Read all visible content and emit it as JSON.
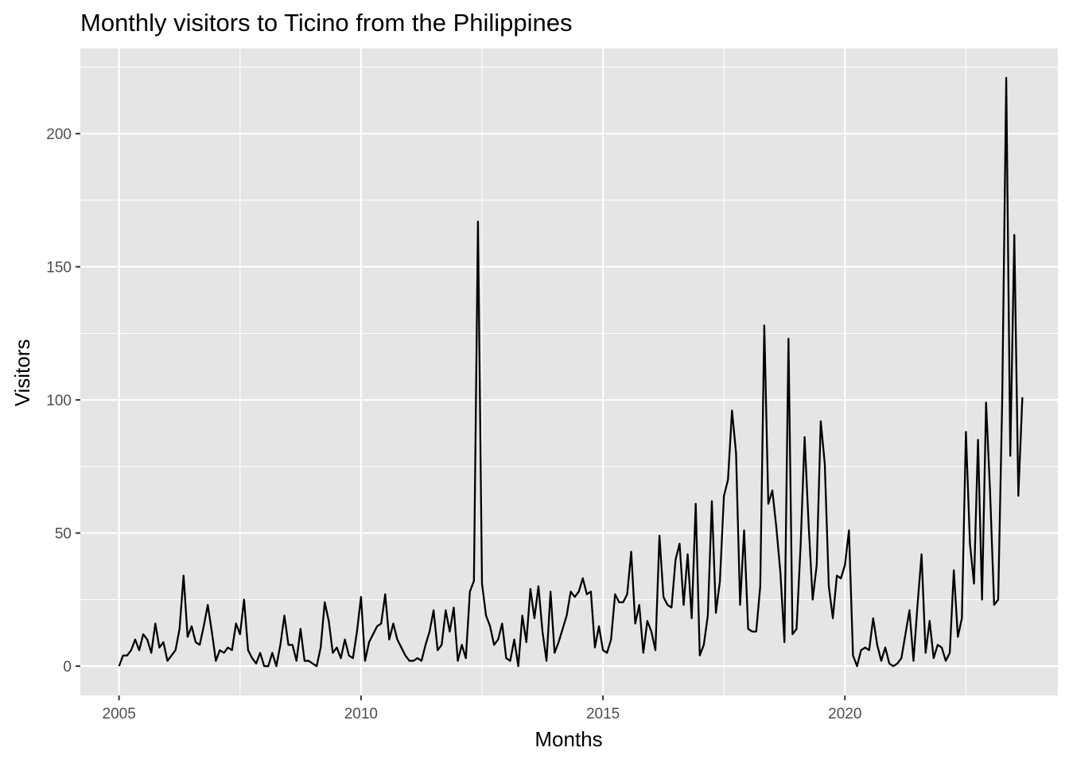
{
  "chart_data": {
    "type": "line",
    "title": "Monthly visitors to Ticino from the Philippines",
    "xlabel": "Months",
    "ylabel": "Visitors",
    "xlim": [
      2004.2,
      2024.4
    ],
    "ylim": [
      -11,
      232
    ],
    "x_ticks": [
      2005,
      2010,
      2015,
      2020
    ],
    "x_tick_labels": [
      "2005",
      "2010",
      "2015",
      "2020"
    ],
    "y_ticks": [
      0,
      50,
      100,
      150,
      200
    ],
    "y_tick_labels": [
      "0",
      "50",
      "100",
      "150",
      "200"
    ],
    "grid": true,
    "legend": "none",
    "colors": {
      "panel": "#e5e5e5",
      "grid": "#ffffff",
      "line": "#000000",
      "tick": "#333333"
    },
    "series": [
      {
        "start_year": 2005,
        "start_month": 1,
        "frequency": "monthly",
        "values": [
          0,
          4,
          4,
          6,
          10,
          6,
          12,
          10,
          5,
          16,
          7,
          9,
          2,
          4,
          6,
          14,
          34,
          11,
          15,
          9,
          8,
          15,
          23,
          13,
          2,
          6,
          5,
          7,
          6,
          16,
          12,
          25,
          6,
          3,
          1,
          5,
          0,
          0,
          5,
          0,
          8,
          19,
          8,
          8,
          2,
          14,
          2,
          2,
          1,
          0,
          7,
          24,
          17,
          5,
          7,
          3,
          10,
          4,
          3,
          13,
          26,
          2,
          9,
          12,
          15,
          16,
          27,
          10,
          16,
          10,
          7,
          4,
          2,
          2,
          3,
          2,
          8,
          13,
          21,
          6,
          8,
          21,
          13,
          22,
          2,
          8,
          3,
          28,
          32,
          167,
          31,
          19,
          15,
          8,
          10,
          16,
          3,
          2,
          10,
          0,
          19,
          9,
          29,
          18,
          30,
          13,
          2,
          28,
          5,
          9,
          14,
          19,
          28,
          26,
          28,
          33,
          27,
          28,
          7,
          15,
          6,
          5,
          10,
          27,
          24,
          24,
          27,
          43,
          16,
          23,
          5,
          17,
          13,
          6,
          49,
          26,
          23,
          22,
          40,
          46,
          23,
          42,
          18,
          61,
          4,
          8,
          19,
          62,
          20,
          32,
          64,
          70,
          96,
          80,
          23,
          51,
          14,
          13,
          13,
          30,
          128,
          61,
          66,
          52,
          35,
          9,
          123,
          12,
          14,
          45,
          86,
          53,
          25,
          38,
          92,
          76,
          30,
          18,
          34,
          33,
          38,
          51,
          4,
          0,
          6,
          7,
          6,
          18,
          8,
          2,
          7,
          1,
          0,
          1,
          3,
          12,
          21,
          2,
          23,
          42,
          5,
          17,
          3,
          8,
          7,
          2,
          5,
          36,
          11,
          18,
          88,
          46,
          31,
          85,
          25,
          99,
          65,
          23,
          25,
          100,
          221,
          79,
          162,
          64,
          101
        ]
      }
    ]
  }
}
